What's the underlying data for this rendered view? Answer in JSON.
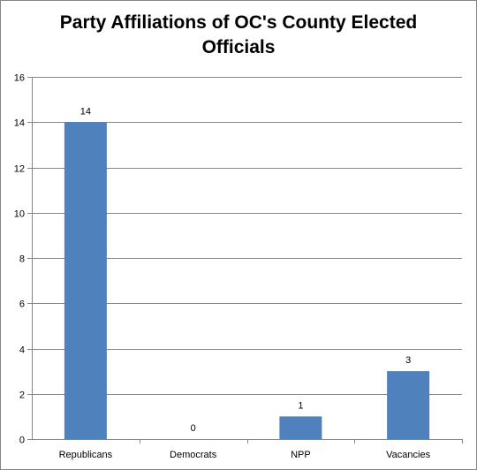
{
  "chart_data": {
    "type": "bar",
    "title_lines": [
      "Party Affiliations of OC's County Elected",
      "Officials"
    ],
    "categories": [
      "Republicans",
      "Democrats",
      "NPP",
      "Vacancies"
    ],
    "values": [
      14,
      0,
      1,
      3
    ],
    "data_labels": [
      "14",
      "0",
      "1",
      "3"
    ],
    "ylim": [
      0,
      16
    ],
    "yticks": [
      0,
      2,
      4,
      6,
      8,
      10,
      12,
      14,
      16
    ],
    "ytick_labels": [
      "0",
      "2",
      "4",
      "6",
      "8",
      "10",
      "12",
      "14",
      "16"
    ],
    "xlabel": "",
    "ylabel": "",
    "grid": true,
    "legend": "none",
    "bar_color": "#4F81BD",
    "grid_color": "#868686"
  }
}
